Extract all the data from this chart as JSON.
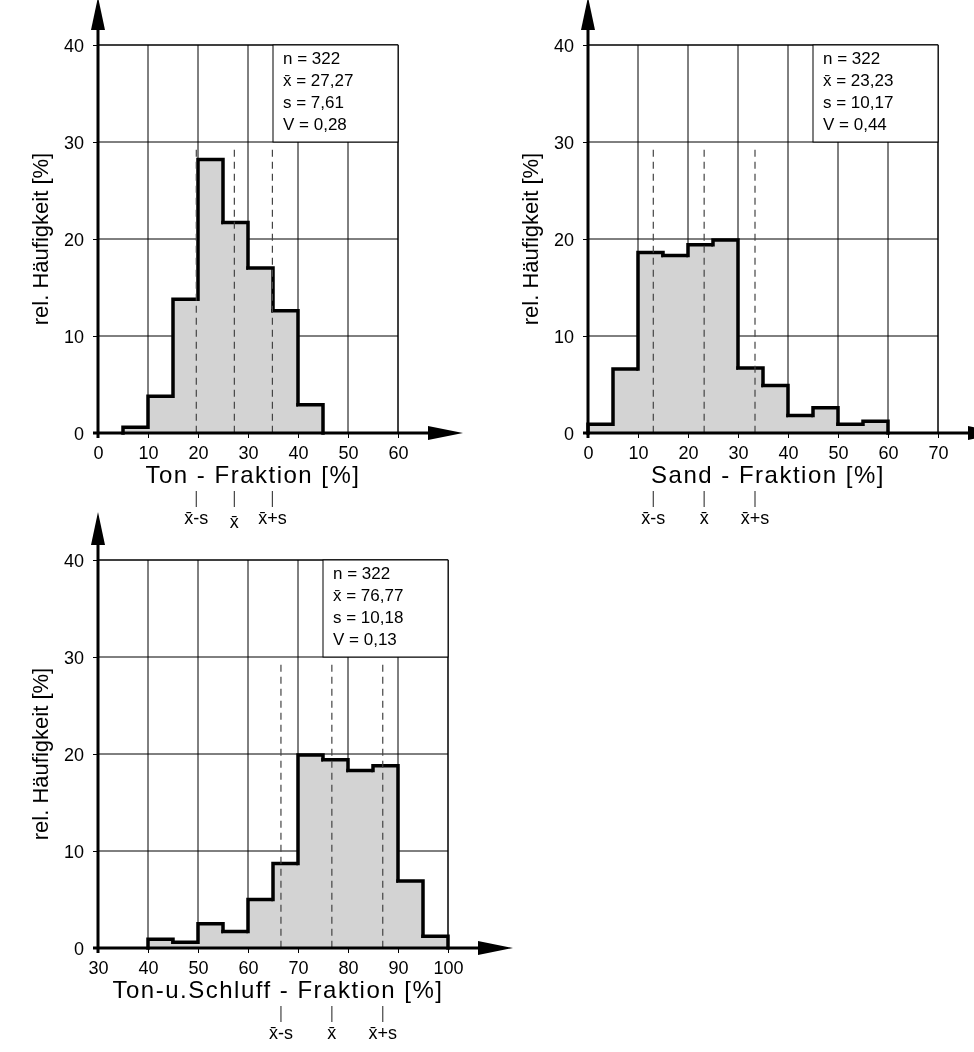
{
  "chart_data": [
    {
      "type": "histogram",
      "xlabel": "Ton - Fraktion [%]",
      "ylabel": "rel. Häufigkeit  [%]",
      "bins": [
        5,
        10,
        15,
        20,
        25,
        30,
        35,
        40,
        45
      ],
      "values": [
        0.6,
        3.8,
        13.8,
        28.2,
        21.7,
        17.0,
        12.6,
        2.9
      ],
      "color": "#d3d3d3",
      "xlim": [
        0,
        60
      ],
      "xticks": [
        0,
        10,
        20,
        30,
        40,
        50,
        60
      ],
      "ylim": [
        0,
        40
      ],
      "yticks": [
        0,
        10,
        20,
        30,
        40
      ],
      "grid": true,
      "annotations": [
        "n = 322",
        "x̄ = 27,27",
        "s = 7,61",
        "V = 0,28"
      ],
      "ref_lines": [
        {
          "axis": "x",
          "value": 19.66,
          "label": "x̄-s",
          "line_style": "dashed"
        },
        {
          "axis": "x",
          "value": 27.27,
          "label": "x̄",
          "line_style": "dashed"
        },
        {
          "axis": "x",
          "value": 34.88,
          "label": "x̄+s",
          "line_style": "dashed"
        }
      ]
    },
    {
      "type": "histogram",
      "xlabel": "Sand - Fraktion [%]",
      "ylabel": "rel. Häufigkeit  [%]",
      "bins": [
        0,
        5,
        10,
        15,
        20,
        25,
        30,
        35,
        40,
        45,
        50,
        55,
        60
      ],
      "values": [
        0.9,
        6.6,
        18.6,
        18.3,
        19.4,
        19.9,
        6.7,
        4.9,
        1.8,
        2.6,
        0.9,
        1.2
      ],
      "color": "#d3d3d3",
      "xlim": [
        0,
        70
      ],
      "xticks": [
        0,
        10,
        20,
        30,
        40,
        50,
        60,
        70
      ],
      "ylim": [
        0,
        40
      ],
      "yticks": [
        0,
        10,
        20,
        30,
        40
      ],
      "grid": true,
      "annotations": [
        "n = 322",
        "x̄ = 23,23",
        "s = 10,17",
        "V = 0,44"
      ],
      "ref_lines": [
        {
          "axis": "x",
          "value": 13.06,
          "label": "x̄-s",
          "line_style": "dashed"
        },
        {
          "axis": "x",
          "value": 23.23,
          "label": "x̄",
          "line_style": "dashed"
        },
        {
          "axis": "x",
          "value": 33.4,
          "label": "x̄+s",
          "line_style": "dashed"
        }
      ]
    },
    {
      "type": "histogram",
      "xlabel": "Ton-u.Schluff - Fraktion [%]",
      "ylabel": "rel. Häufigkeit  [%]",
      "bins": [
        40,
        45,
        50,
        55,
        60,
        65,
        70,
        75,
        80,
        85,
        90,
        95,
        100
      ],
      "values": [
        0.9,
        0.6,
        2.5,
        1.7,
        5.0,
        8.7,
        19.9,
        19.4,
        18.3,
        18.8,
        6.9,
        1.2
      ],
      "color": "#d3d3d3",
      "xlim": [
        30,
        100
      ],
      "xticks": [
        30,
        40,
        50,
        60,
        70,
        80,
        90,
        100
      ],
      "ylim": [
        0,
        40
      ],
      "yticks": [
        0,
        10,
        20,
        30,
        40
      ],
      "grid": true,
      "annotations": [
        "n = 322",
        "x̄ = 76,77",
        "s = 10,18",
        "V = 0,13"
      ],
      "ref_lines": [
        {
          "axis": "x",
          "value": 66.59,
          "label": "x̄-s",
          "line_style": "dashed"
        },
        {
          "axis": "x",
          "value": 76.77,
          "label": "x̄",
          "line_style": "dashed"
        },
        {
          "axis": "x",
          "value": 86.95,
          "label": "x̄+s",
          "line_style": "dashed"
        }
      ]
    }
  ]
}
